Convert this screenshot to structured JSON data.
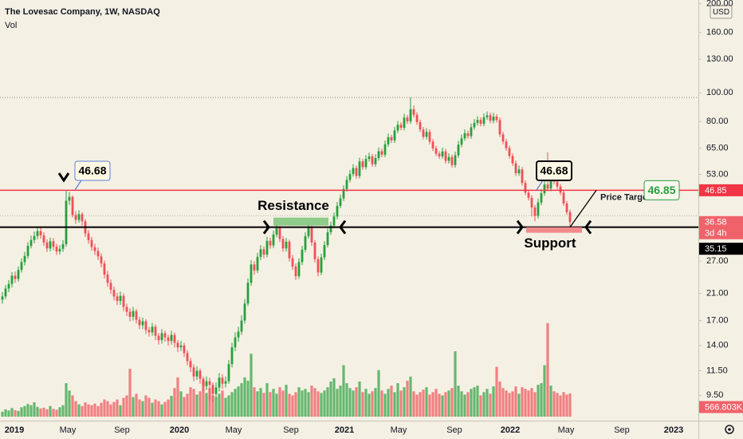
{
  "chart_data": {
    "type": "candlestick",
    "title": "The Lovesac Company, 1W, NASDAQ",
    "subtitle": "Vol",
    "currency": "USD",
    "x": [
      0,
      1,
      2,
      3,
      4,
      5,
      6,
      7,
      8,
      9,
      10,
      11,
      12,
      13,
      14,
      15,
      16,
      17,
      18,
      19,
      20,
      21,
      22,
      23,
      24,
      25,
      26,
      27,
      28,
      29,
      30,
      31,
      32,
      33,
      34,
      35,
      36,
      37,
      38,
      39,
      40,
      41,
      42,
      43,
      44,
      45,
      46,
      47,
      48,
      49,
      50,
      51,
      52,
      53,
      54,
      55,
      56,
      57,
      58,
      59,
      60,
      61,
      62,
      63,
      64,
      65,
      66,
      67,
      68,
      69,
      70,
      71,
      72,
      73,
      74,
      75,
      76,
      77,
      78,
      79,
      80,
      81,
      82,
      83,
      84,
      85,
      86,
      87,
      88,
      89,
      90,
      91,
      92,
      93,
      94,
      95,
      96,
      97,
      98,
      99,
      100,
      101,
      102,
      103,
      104,
      105,
      106,
      107,
      108,
      109,
      110,
      111,
      112,
      113,
      114,
      115,
      116,
      117,
      118,
      119,
      120,
      121,
      122,
      123,
      124,
      125,
      126,
      127,
      128,
      129,
      130,
      131,
      132,
      133,
      134,
      135,
      136,
      137,
      138,
      139,
      140,
      141,
      142,
      143,
      144,
      145,
      146,
      147,
      148,
      149,
      150,
      151,
      152,
      153,
      154,
      155,
      156,
      157,
      158,
      159,
      160,
      161,
      162,
      163,
      164,
      165,
      166,
      167,
      168,
      169,
      170,
      171,
      172,
      173,
      174,
      175,
      176,
      177,
      178
    ],
    "open": [
      20.0,
      20.5,
      21.8,
      22.6,
      24.1,
      23.5,
      25.2,
      26.8,
      28.1,
      30.4,
      31.8,
      32.8,
      34.1,
      33.0,
      31.2,
      29.8,
      31.5,
      30.2,
      29.1,
      29.7,
      30.8,
      43.2,
      44.5,
      38.6,
      37.2,
      38.9,
      36.8,
      33.5,
      31.8,
      30.1,
      29.2,
      28.0,
      26.5,
      24.3,
      22.8,
      21.6,
      20.5,
      19.8,
      20.6,
      18.9,
      18.2,
      17.5,
      18.3,
      17.1,
      16.4,
      16.9,
      15.8,
      15.5,
      16.2,
      15.1,
      14.6,
      15.4,
      14.9,
      14.5,
      15.2,
      14.3,
      13.8,
      14.0,
      13.2,
      12.4,
      11.8,
      11.0,
      11.5,
      10.8,
      10.2,
      10.6,
      10.3,
      9.6,
      10.1,
      10.9,
      10.4,
      10.6,
      12.1,
      13.8,
      14.9,
      15.6,
      17.0,
      19.4,
      22.8,
      26.3,
      25.1,
      27.9,
      29.6,
      28.4,
      31.6,
      30.5,
      33.2,
      34.9,
      32.1,
      29.8,
      31.4,
      27.6,
      25.9,
      24.0,
      26.8,
      29.5,
      32.8,
      35.0,
      31.2,
      27.4,
      24.7,
      27.8,
      30.6,
      33.8,
      35.6,
      38.2,
      41.5,
      44.0,
      47.3,
      50.8,
      53.2,
      55.7,
      52.4,
      58.6,
      56.1,
      59.8,
      61.0,
      57.4,
      60.2,
      63.5,
      61.8,
      67.0,
      70.8,
      69.1,
      74.6,
      78.0,
      76.2,
      82.5,
      80.1,
      88.0,
      84.3,
      79.6,
      75.2,
      71.0,
      73.8,
      68.4,
      64.9,
      62.3,
      61.0,
      63.4,
      58.9,
      60.7,
      57.0,
      61.5,
      66.8,
      70.2,
      73.0,
      71.4,
      76.5,
      79.2,
      81.0,
      78.6,
      82.7,
      84.0,
      80.5,
      83.1,
      81.0,
      72.4,
      68.5,
      65.0,
      61.2,
      57.8,
      53.5,
      55.1,
      49.6,
      46.0,
      44.2,
      41.0,
      38.4,
      42.6,
      45.8,
      49.0,
      47.5,
      52.0,
      50.1,
      48.2,
      46.0,
      42.3,
      39.5
    ],
    "high": [
      21.2,
      22.4,
      23.3,
      24.8,
      24.9,
      25.9,
      27.6,
      29.0,
      31.3,
      32.9,
      34.0,
      35.2,
      35.0,
      33.8,
      32.0,
      32.4,
      32.3,
      30.9,
      30.6,
      31.8,
      46.68,
      46.2,
      45.0,
      39.8,
      40.1,
      39.5,
      37.4,
      34.4,
      32.6,
      30.9,
      30.0,
      28.7,
      27.1,
      25.0,
      23.4,
      22.2,
      21.1,
      21.3,
      21.0,
      19.4,
      18.7,
      18.9,
      18.6,
      17.5,
      17.4,
      17.2,
      16.2,
      16.7,
      16.5,
      15.4,
      15.9,
      15.7,
      15.2,
      15.7,
      15.5,
      14.6,
      14.5,
      14.3,
      13.5,
      12.7,
      12.1,
      11.9,
      11.7,
      11.0,
      11.0,
      10.9,
      10.5,
      10.5,
      11.3,
      11.2,
      11.0,
      12.5,
      14.3,
      15.5,
      16.2,
      17.7,
      20.1,
      23.6,
      27.2,
      27.0,
      28.8,
      30.6,
      30.3,
      32.6,
      32.4,
      34.2,
      36.0,
      35.5,
      32.8,
      32.3,
      31.9,
      28.3,
      26.5,
      27.6,
      30.4,
      33.8,
      36.1,
      35.6,
      31.8,
      28.0,
      28.6,
      31.5,
      34.8,
      36.7,
      39.4,
      42.8,
      45.3,
      48.7,
      52.3,
      54.8,
      57.4,
      56.8,
      60.4,
      59.8,
      61.6,
      62.8,
      62.2,
      62.0,
      65.4,
      64.8,
      69.0,
      72.9,
      72.2,
      76.8,
      80.3,
      79.6,
      85.0,
      84.2,
      96.5,
      90.6,
      86.0,
      81.2,
      76.7,
      76.0,
      75.3,
      69.8,
      66.2,
      63.5,
      65.3,
      64.7,
      62.5,
      61.9,
      63.3,
      68.8,
      72.3,
      75.2,
      74.5,
      78.8,
      81.6,
      83.4,
      82.6,
      85.2,
      86.5,
      85.7,
      85.6,
      84.8,
      82.6,
      73.8,
      69.9,
      66.3,
      62.4,
      59.0,
      56.8,
      56.2,
      50.6,
      46.9,
      45.1,
      41.8,
      43.9,
      47.2,
      50.5,
      63.0,
      53.6,
      53.0,
      51.1,
      49.2,
      46.9,
      43.1,
      40.3
    ],
    "low": [
      19.4,
      20.1,
      21.2,
      22.0,
      22.8,
      23.0,
      24.7,
      26.1,
      27.5,
      29.8,
      31.0,
      32.0,
      32.1,
      30.4,
      29.0,
      29.1,
      29.4,
      28.3,
      28.4,
      29.0,
      30.2,
      41.8,
      37.9,
      36.1,
      36.4,
      35.6,
      32.6,
      30.9,
      29.3,
      28.3,
      27.2,
      25.7,
      23.6,
      22.1,
      20.9,
      19.9,
      19.2,
      19.2,
      18.3,
      17.6,
      16.9,
      17.0,
      16.6,
      15.9,
      15.9,
      15.3,
      15.0,
      15.1,
      14.6,
      14.1,
      14.2,
      14.4,
      14.0,
      14.1,
      13.8,
      13.3,
      13.4,
      12.8,
      12.0,
      11.4,
      10.6,
      10.7,
      10.4,
      9.8,
      9.9,
      9.1,
      9.0,
      9.3,
      9.8,
      10.0,
      10.1,
      10.4,
      11.8,
      13.4,
      14.4,
      15.2,
      16.6,
      19.0,
      22.3,
      24.3,
      24.6,
      27.2,
      27.6,
      27.8,
      29.7,
      29.9,
      32.5,
      31.3,
      29.0,
      29.1,
      26.9,
      25.2,
      23.3,
      23.5,
      26.2,
      28.9,
      32.1,
      30.4,
      26.7,
      24.0,
      24.2,
      27.2,
      30.0,
      33.1,
      34.9,
      37.4,
      40.7,
      43.1,
      46.4,
      49.8,
      52.1,
      51.3,
      51.4,
      55.0,
      55.0,
      58.6,
      56.3,
      56.3,
      59.0,
      60.6,
      60.6,
      65.7,
      67.7,
      67.7,
      73.1,
      74.7,
      74.7,
      78.5,
      78.5,
      82.6,
      78.0,
      73.7,
      69.6,
      69.6,
      67.0,
      63.6,
      61.1,
      59.8,
      59.8,
      57.7,
      57.7,
      55.9,
      55.9,
      60.3,
      65.5,
      68.8,
      70.0,
      70.0,
      75.0,
      77.6,
      77.0,
      77.0,
      81.0,
      78.9,
      78.9,
      79.4,
      70.9,
      67.1,
      63.7,
      60.0,
      56.6,
      52.4,
      52.4,
      48.6,
      45.1,
      43.3,
      38.2,
      36.8,
      37.6,
      41.7,
      44.9,
      46.5,
      46.5,
      49.1,
      47.2,
      45.1,
      41.5,
      38.7,
      35.2
    ],
    "close": [
      20.5,
      21.8,
      22.6,
      24.1,
      23.5,
      25.2,
      26.8,
      28.1,
      30.4,
      31.8,
      32.8,
      34.1,
      33.0,
      31.2,
      29.8,
      31.5,
      30.2,
      29.1,
      29.7,
      30.8,
      43.2,
      44.5,
      38.6,
      37.2,
      38.9,
      36.8,
      33.5,
      31.8,
      30.1,
      29.2,
      28.0,
      26.5,
      24.3,
      22.8,
      21.6,
      20.5,
      19.8,
      20.6,
      18.9,
      18.2,
      17.5,
      18.3,
      17.1,
      16.4,
      16.9,
      15.8,
      15.5,
      16.2,
      15.1,
      14.6,
      15.4,
      14.9,
      14.5,
      15.2,
      14.3,
      13.8,
      14.0,
      13.2,
      12.4,
      11.8,
      11.0,
      11.5,
      10.8,
      10.2,
      10.6,
      10.3,
      9.6,
      10.1,
      10.9,
      10.4,
      10.6,
      12.1,
      13.8,
      14.9,
      15.6,
      17.0,
      19.4,
      22.8,
      26.3,
      25.1,
      27.9,
      29.6,
      28.4,
      31.6,
      30.5,
      33.2,
      34.9,
      32.1,
      29.8,
      31.4,
      27.6,
      25.9,
      24.0,
      26.8,
      29.5,
      32.8,
      35.0,
      31.2,
      27.4,
      24.7,
      27.8,
      30.6,
      33.8,
      35.6,
      38.2,
      41.5,
      44.0,
      47.3,
      50.8,
      53.2,
      55.7,
      52.4,
      58.6,
      56.1,
      59.8,
      61.0,
      57.4,
      60.2,
      63.5,
      61.8,
      67.0,
      70.8,
      69.1,
      74.6,
      78.0,
      76.2,
      82.5,
      80.1,
      88.0,
      84.3,
      79.6,
      75.2,
      71.0,
      73.8,
      68.4,
      64.9,
      62.3,
      61.0,
      63.4,
      58.9,
      60.7,
      57.0,
      61.5,
      66.8,
      70.2,
      73.0,
      71.4,
      76.5,
      79.2,
      81.0,
      78.6,
      82.7,
      84.0,
      80.5,
      83.1,
      81.0,
      72.4,
      68.5,
      65.0,
      61.2,
      57.8,
      53.5,
      55.1,
      49.6,
      46.0,
      44.2,
      41.0,
      38.4,
      42.6,
      45.8,
      49.0,
      47.5,
      52.0,
      50.1,
      48.2,
      46.0,
      42.3,
      39.5,
      36.58
    ],
    "volume": [
      120,
      180,
      150,
      210,
      160,
      140,
      230,
      260,
      310,
      280,
      350,
      240,
      200,
      220,
      180,
      260,
      190,
      170,
      230,
      280,
      820,
      640,
      520,
      380,
      300,
      260,
      350,
      300,
      280,
      320,
      260,
      340,
      420,
      380,
      300,
      360,
      420,
      280,
      460,
      520,
      1170,
      480,
      560,
      420,
      380,
      520,
      460,
      340,
      420,
      380,
      300,
      360,
      420,
      510,
      700,
      960,
      620,
      480,
      560,
      720,
      680,
      540,
      620,
      880,
      580,
      700,
      520,
      480,
      560,
      640,
      460,
      520,
      600,
      680,
      740,
      820,
      960,
      880,
      1540,
      720,
      620,
      700,
      580,
      820,
      600,
      680,
      560,
      720,
      640,
      780,
      560,
      520,
      600,
      720,
      640,
      680,
      600,
      760,
      700,
      620,
      580,
      640,
      720,
      860,
      940,
      680,
      760,
      1260,
      820,
      700,
      640,
      720,
      860,
      600,
      680,
      560,
      620,
      700,
      1140,
      640,
      560,
      680,
      760,
      600,
      820,
      640,
      720,
      880,
      980,
      620,
      540,
      600,
      660,
      720,
      540,
      600,
      680,
      560,
      520,
      600,
      640,
      700,
      1600,
      760,
      620,
      540,
      600,
      680,
      720,
      760,
      520,
      600,
      680,
      560,
      740,
      1220,
      860,
      700,
      640,
      580,
      620,
      740,
      560,
      720,
      680,
      640,
      700,
      600,
      780,
      820,
      1260,
      2290,
      760,
      620,
      580,
      520,
      600,
      540,
      566.803
    ],
    "volume_last_label": "566.803K",
    "up_color": "#26a03c",
    "down_color": "#ef4f57",
    "log_scale": true,
    "grid": false,
    "xlim": [
      -0.75,
      218.25
    ],
    "ylim": [
      7.8,
      206
    ],
    "vlim": [
      0,
      2540
    ],
    "xticks": [
      {
        "value": 3.75,
        "label": "2019"
      },
      {
        "value": 20.5,
        "label": "May"
      },
      {
        "value": 37.5,
        "label": "Sep"
      },
      {
        "value": 55.5,
        "label": "2020"
      },
      {
        "value": 72.5,
        "label": "May"
      },
      {
        "value": 90.5,
        "label": "Sep"
      },
      {
        "value": 107.25,
        "label": "2021"
      },
      {
        "value": 124.25,
        "label": "May"
      },
      {
        "value": 141.75,
        "label": "Sep"
      },
      {
        "value": 159.25,
        "label": "2022"
      },
      {
        "value": 176.75,
        "label": "May"
      },
      {
        "value": 194.25,
        "label": "Sep"
      },
      {
        "value": 210.5,
        "label": "2023"
      }
    ],
    "yticks": [
      {
        "value": 200,
        "label": "200.00"
      },
      {
        "value": 160,
        "label": "160.00"
      },
      {
        "value": 130,
        "label": "130.00"
      },
      {
        "value": 100,
        "label": "100.00"
      },
      {
        "value": 80,
        "label": "80.00"
      },
      {
        "value": 65,
        "label": "65.00"
      },
      {
        "value": 53,
        "label": "53.00"
      },
      {
        "value": 27,
        "label": "27.00"
      },
      {
        "value": 21,
        "label": "21.00"
      },
      {
        "value": 17,
        "label": "17.00"
      },
      {
        "value": 14,
        "label": "14.00"
      },
      {
        "value": 11.5,
        "label": "11.50"
      },
      {
        "value": 9.5,
        "label": "9.50"
      }
    ],
    "resistance_level": 46.85,
    "support_level": 35.15,
    "countdown": "3d 4h",
    "callouts": [
      46.68,
      46.68
    ],
    "annotations": {
      "resistance": "Resistance",
      "support": "Support",
      "price_target": "Price Target"
    },
    "price_target": 46.85
  }
}
